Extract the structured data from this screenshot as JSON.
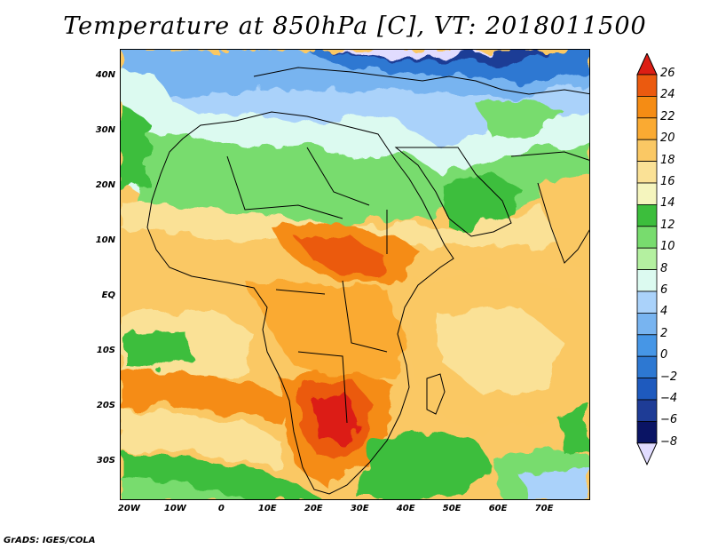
{
  "title": "Temperature at 850hPa [C], VT: 2018011500",
  "credit": "GrADS: IGES/COLA",
  "latitude_labels": [
    {
      "text": "40N",
      "lat": 40
    },
    {
      "text": "30N",
      "lat": 30
    },
    {
      "text": "20N",
      "lat": 20
    },
    {
      "text": "10N",
      "lat": 10
    },
    {
      "text": "EQ",
      "lat": 0
    },
    {
      "text": "10S",
      "lat": -10
    },
    {
      "text": "20S",
      "lat": -20
    },
    {
      "text": "30S",
      "lat": -30
    }
  ],
  "longitude_labels": [
    {
      "text": "20W",
      "lon": -20
    },
    {
      "text": "10W",
      "lon": -10
    },
    {
      "text": "0",
      "lon": 0
    },
    {
      "text": "10E",
      "lon": 10
    },
    {
      "text": "20E",
      "lon": 20
    },
    {
      "text": "30E",
      "lon": 30
    },
    {
      "text": "40E",
      "lon": 40
    },
    {
      "text": "50E",
      "lon": 50
    },
    {
      "text": "60E",
      "lon": 60
    },
    {
      "text": "70E",
      "lon": 70
    }
  ],
  "map_extent": {
    "lon_min": -22,
    "lon_max": 80,
    "lat_min": -37,
    "lat_max": 45
  },
  "colorbar": {
    "unit": "C",
    "levels": [
      26,
      24,
      22,
      20,
      18,
      16,
      14,
      12,
      10,
      8,
      6,
      4,
      2,
      0,
      -2,
      -4,
      -6,
      -8
    ],
    "colors": [
      "#dc1e14",
      "#eb5a0f",
      "#f58c14",
      "#faaa32",
      "#fac864",
      "#fae196",
      "#f5f5be",
      "#3cbe3c",
      "#78dc6e",
      "#b4f0a0",
      "#dcfaf0",
      "#aad2fa",
      "#78b4f0",
      "#4696e6",
      "#2d78d2",
      "#1e5abe",
      "#1e3c96",
      "#0a1464",
      "#e1dcff"
    ]
  },
  "temperature_regions": [
    {
      "name": "mediterranean-cold-band",
      "temp_c": -4
    },
    {
      "name": "north-sahara-cool",
      "temp_c": 8
    },
    {
      "name": "sahara-green",
      "temp_c": 11
    },
    {
      "name": "sahel-warm",
      "temp_c": 19
    },
    {
      "name": "central-africa-hot",
      "temp_c": 24
    },
    {
      "name": "southern-africa-hot",
      "temp_c": 25
    },
    {
      "name": "indian-ocean-warm",
      "temp_c": 17
    },
    {
      "name": "south-atlantic-cool",
      "temp_c": 11
    }
  ]
}
